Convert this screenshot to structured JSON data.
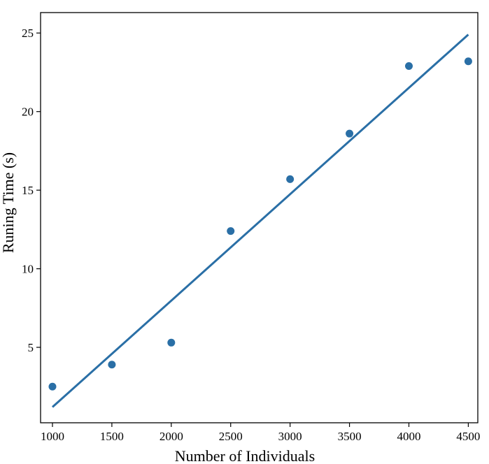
{
  "chart_data": {
    "type": "scatter",
    "title": "",
    "xlabel": "Number of Individuals",
    "ylabel": "Runing Time (s)",
    "xlim": [
      900,
      4580
    ],
    "ylim": [
      0.2,
      26.3
    ],
    "x_ticks": [
      1000,
      1500,
      2000,
      2500,
      3000,
      3500,
      4000,
      4500
    ],
    "y_ticks": [
      5,
      10,
      15,
      20,
      25
    ],
    "grid": false,
    "legend": "none",
    "series": [
      {
        "type": "scatter",
        "color": "#2a6fa6",
        "points": [
          {
            "x": 1000,
            "y": 2.5
          },
          {
            "x": 1500,
            "y": 3.9
          },
          {
            "x": 2000,
            "y": 5.3
          },
          {
            "x": 2500,
            "y": 12.4
          },
          {
            "x": 3000,
            "y": 15.7
          },
          {
            "x": 3500,
            "y": 18.6
          },
          {
            "x": 4000,
            "y": 22.9
          },
          {
            "x": 4500,
            "y": 23.2
          }
        ]
      },
      {
        "type": "line",
        "color": "#2a6fa6",
        "points": [
          {
            "x": 1000,
            "y": 1.2
          },
          {
            "x": 4500,
            "y": 24.9
          }
        ]
      }
    ]
  }
}
